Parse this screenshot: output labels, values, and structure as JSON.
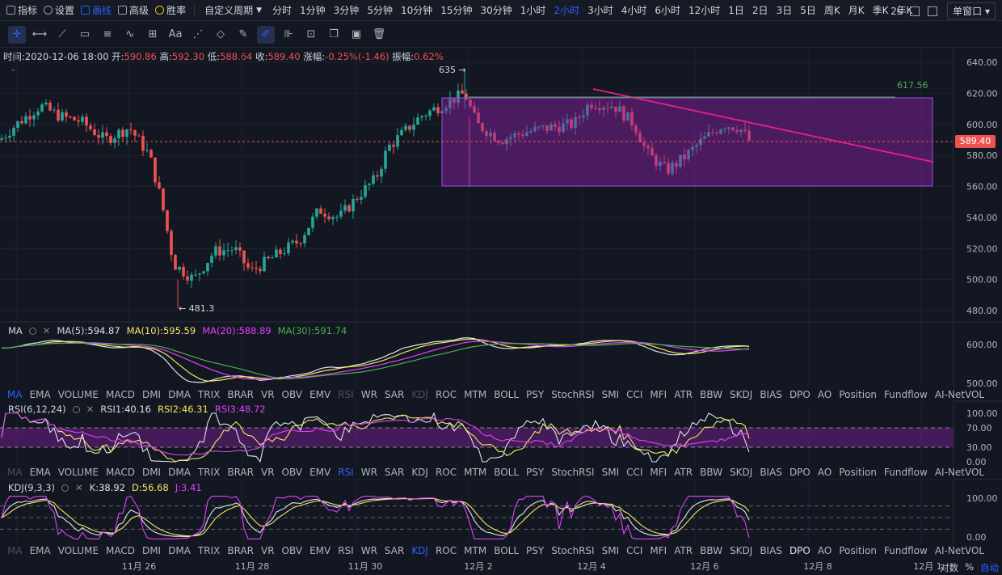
{
  "topbar": {
    "left_items": [
      {
        "icon": "indicator-icon",
        "label": "指标"
      },
      {
        "icon": "settings-icon",
        "label": "设置"
      },
      {
        "icon": "draw-icon",
        "label": "画线"
      },
      {
        "icon": "advanced-icon",
        "label": "高级"
      },
      {
        "icon": "winrate-icon",
        "label": "胜率"
      }
    ],
    "custom_period": "自定义周期",
    "periods": [
      "分时",
      "1分钟",
      "3分钟",
      "5分钟",
      "10分钟",
      "15分钟",
      "30分钟",
      "1小时",
      "2小时",
      "3小时",
      "4小时",
      "6小时",
      "12小时",
      "1日",
      "2日",
      "3日",
      "5日",
      "周K",
      "月K",
      "季K",
      "年K"
    ],
    "active_period": "2小时",
    "refresh": "2s",
    "window_mode": "单窗口"
  },
  "toolbar": {
    "tools": [
      "crosshair-icon",
      "horizontal-line-icon",
      "trend-line-icon",
      "rectangle-icon",
      "parallel-lines-icon",
      "wave-icon",
      "grid-icon",
      "text-tool",
      "fib-icon",
      "eraser-icon",
      "brush-icon",
      "draw-mode-icon",
      "measure-icon",
      "lock-icon",
      "copy-icon",
      "image-icon",
      "trash-icon"
    ],
    "text_label": "Aa"
  },
  "info": {
    "time_label": "时间:",
    "time": "2020-12-06 18:00",
    "open_label": "开:",
    "open": "590.86",
    "high_label": "高:",
    "high": "592.30",
    "low_label": "低:",
    "low": "588.64",
    "close_label": "收:",
    "close": "589.40",
    "change_label": "涨幅:",
    "change": "-0.25%(-1.46)",
    "amp_label": "振幅:",
    "amp": "0.62%"
  },
  "price_axis": [
    "640.00",
    "620.00",
    "600.00",
    "580.00",
    "560.00",
    "540.00",
    "520.00",
    "500.00",
    "480.00"
  ],
  "current_price": "589.40",
  "annotations": {
    "high": "635",
    "low": "481.3",
    "level": "617.56"
  },
  "ma_pane": {
    "name": "MA",
    "v5_label": "MA(5):",
    "v5": "594.87",
    "v10_label": "MA(10):",
    "v10": "595.59",
    "v20_label": "MA(20):",
    "v20": "588.89",
    "v30_label": "MA(30):",
    "v30": "591.74",
    "axis": [
      "600.00",
      "500.00"
    ]
  },
  "rsi_pane": {
    "name": "RSI(6,12,24)",
    "r1_label": "RSI1:",
    "r1": "40.16",
    "r2_label": "RSI2:",
    "r2": "46.31",
    "r3_label": "RSI3:",
    "r3": "48.72",
    "axis": [
      "100.00",
      "70.00",
      "30.00",
      "0.00"
    ]
  },
  "kdj_pane": {
    "name": "KDJ(9,3,3)",
    "k_label": "K:",
    "k": "38.92",
    "d_label": "D:",
    "d": "56.68",
    "j_label": "J:",
    "j": "3.41",
    "axis": [
      "100.00",
      "0.00"
    ]
  },
  "indicator_tabs": [
    "MA",
    "EMA",
    "VOLUME",
    "MACD",
    "DMI",
    "DMA",
    "TRIX",
    "BRAR",
    "VR",
    "OBV",
    "EMV",
    "RSI",
    "WR",
    "SAR",
    "KDJ",
    "ROC",
    "MTM",
    "BOLL",
    "PSY",
    "StochRSI",
    "SMI",
    "CCI",
    "MFI",
    "ATR",
    "BBW",
    "SKDJ",
    "BIAS",
    "DPO",
    "AO",
    "Position",
    "Fundflow",
    "AI-NetVOL"
  ],
  "x_axis": [
    "11月 26",
    "11月 28",
    "11月 30",
    "12月 2",
    "12月 4",
    "12月 6",
    "12月 8",
    "12月 1"
  ],
  "bottom_right": {
    "log": "对数",
    "pct": "%",
    "auto": "自动"
  },
  "colors": {
    "up": "#26a69a",
    "down": "#ef5350",
    "ma5": "#e0e3eb",
    "ma10": "#f5e663",
    "ma20": "#e040fb",
    "ma30": "#4caf50",
    "rect": "#8e24aa",
    "trend": "#e91e8c",
    "accent": "#2962ff"
  }
}
